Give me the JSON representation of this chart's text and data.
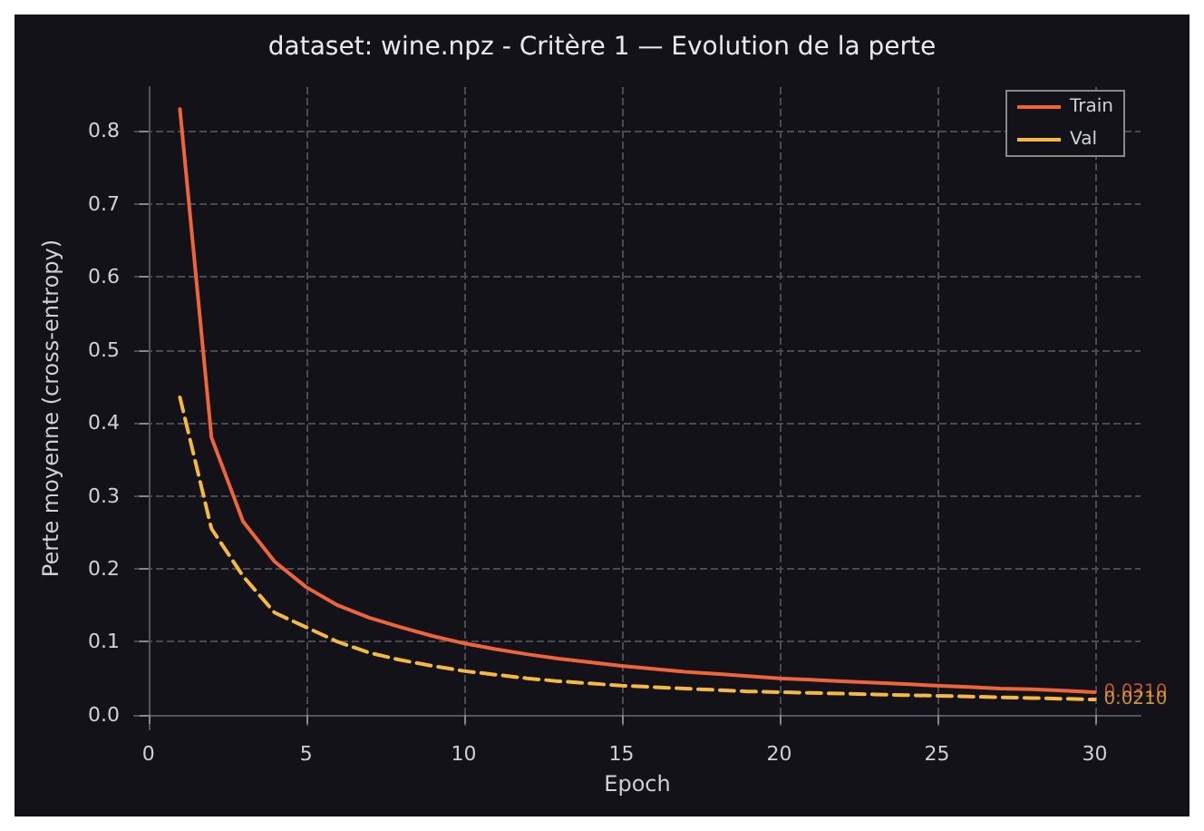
{
  "chart_data": {
    "type": "line",
    "title": "dataset: wine.npz - Critère 1 — Evolution de la perte",
    "xlabel": "Epoch",
    "ylabel": "Perte moyenne (cross-entropy)",
    "x": [
      1,
      2,
      3,
      4,
      5,
      6,
      7,
      8,
      9,
      10,
      11,
      12,
      13,
      14,
      15,
      16,
      17,
      18,
      19,
      20,
      21,
      22,
      23,
      24,
      25,
      26,
      27,
      28,
      29,
      30
    ],
    "series": [
      {
        "name": "Train",
        "color": "#f0643c",
        "line_style": "solid",
        "values": [
          0.83,
          0.38,
          0.265,
          0.21,
          0.175,
          0.15,
          0.133,
          0.12,
          0.108,
          0.098,
          0.09,
          0.083,
          0.077,
          0.072,
          0.067,
          0.063,
          0.059,
          0.056,
          0.053,
          0.05,
          0.048,
          0.046,
          0.044,
          0.042,
          0.04,
          0.038,
          0.036,
          0.035,
          0.033,
          0.031
        ]
      },
      {
        "name": "Val",
        "color": "#f5b841",
        "line_style": "dashed",
        "values": [
          0.435,
          0.255,
          0.19,
          0.14,
          0.12,
          0.1,
          0.085,
          0.075,
          0.067,
          0.06,
          0.055,
          0.05,
          0.046,
          0.043,
          0.04,
          0.038,
          0.036,
          0.034,
          0.032,
          0.031,
          0.03,
          0.029,
          0.028,
          0.027,
          0.026,
          0.025,
          0.024,
          0.023,
          0.022,
          0.021
        ]
      }
    ],
    "annotations": [
      {
        "text": "0.0310",
        "x": 30,
        "y": 0.031
      },
      {
        "text": "0.0210",
        "x": 30,
        "y": 0.021
      }
    ],
    "xlim": [
      -0.45,
      31.45
    ],
    "xticks": [
      0,
      5,
      10,
      15,
      20,
      25,
      30
    ],
    "ylim": [
      -0.02,
      0.86
    ],
    "yticks": [
      {
        "value": 0,
        "label": "0.0"
      },
      {
        "value": 0.1,
        "label": "0.1"
      },
      {
        "value": 0.2,
        "label": "0.2"
      },
      {
        "value": 0.3,
        "label": "0.3"
      },
      {
        "value": 0.4,
        "label": "0.4"
      },
      {
        "value": 0.5,
        "label": "0.5"
      },
      {
        "value": 0.6,
        "label": "0.6"
      },
      {
        "value": 0.7,
        "label": "0.7"
      },
      {
        "value": 0.8,
        "label": "0.8"
      }
    ],
    "grid": true,
    "legend": "top right",
    "marker": "none"
  }
}
